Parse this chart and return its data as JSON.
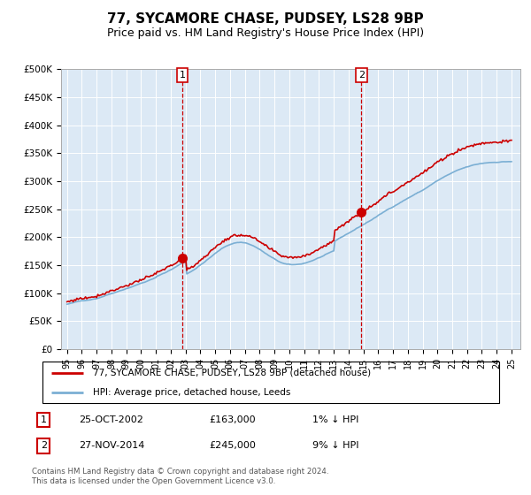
{
  "title": "77, SYCAMORE CHASE, PUDSEY, LS28 9BP",
  "subtitle": "Price paid vs. HM Land Registry's House Price Index (HPI)",
  "ylim": [
    0,
    500000
  ],
  "yticks": [
    0,
    50000,
    100000,
    150000,
    200000,
    250000,
    300000,
    350000,
    400000,
    450000,
    500000
  ],
  "ytick_labels": [
    "£0",
    "£50K",
    "£100K",
    "£150K",
    "£200K",
    "£250K",
    "£300K",
    "£350K",
    "£400K",
    "£450K",
    "£500K"
  ],
  "hpi_color": "#7bafd4",
  "price_color": "#cc0000",
  "marker_color": "#cc0000",
  "vline_color": "#cc0000",
  "bg_color": "#dce9f5",
  "sale1_year": 2002,
  "sale1_month": 10,
  "sale1_price": 163000,
  "sale1_label": "1",
  "sale2_year": 2014,
  "sale2_month": 11,
  "sale2_price": 245000,
  "sale2_label": "2",
  "legend_entry1": "77, SYCAMORE CHASE, PUDSEY, LS28 9BP (detached house)",
  "legend_entry2": "HPI: Average price, detached house, Leeds",
  "table_row1": [
    "1",
    "25-OCT-2002",
    "£163,000",
    "1% ↓ HPI"
  ],
  "table_row2": [
    "2",
    "27-NOV-2014",
    "£245,000",
    "9% ↓ HPI"
  ],
  "footer": "Contains HM Land Registry data © Crown copyright and database right 2024.\nThis data is licensed under the Open Government Licence v3.0.",
  "title_fontsize": 11,
  "subtitle_fontsize": 9,
  "xtick_labels": [
    "95",
    "96",
    "97",
    "98",
    "99",
    "00",
    "01",
    "02",
    "03",
    "04",
    "05",
    "06",
    "07",
    "08",
    "09",
    "10",
    "11",
    "12",
    "13",
    "14",
    "15",
    "16",
    "17",
    "18",
    "19",
    "20",
    "21",
    "22",
    "23",
    "24",
    "25"
  ]
}
